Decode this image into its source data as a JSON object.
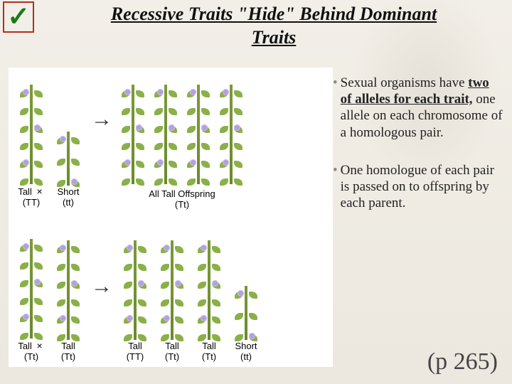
{
  "header": {
    "checkmark": "✓",
    "title_line1": "Recessive Traits \"Hide\" Behind Dominant",
    "title_line2": "Traits"
  },
  "bullets": {
    "b1_pre": "Sexual organisms have ",
    "b1_bold": "two of alleles for each trait,",
    "b1_post": " one allele on each chromosome of a homologous pair.",
    "b2": "One homologue of each pair is passed on to offspring by each parent."
  },
  "page_ref": "(p 265)",
  "diagram": {
    "row1": {
      "parent1": {
        "label_top": "Tall",
        "label_bot": "(TT)"
      },
      "cross": "×",
      "parent2": {
        "label_top": "Short",
        "label_bot": "(tt)"
      },
      "offspring_label_top": "All Tall Offspring",
      "offspring_label_bot": "(Tt)"
    },
    "row2": {
      "parent1": {
        "label_top": "Tall",
        "label_bot": "(Tt)"
      },
      "cross": "×",
      "parent2": {
        "label_top": "Tall",
        "label_bot": "(Tt)"
      },
      "off1": {
        "top": "Tall",
        "bot": "(TT)"
      },
      "off2": {
        "top": "Tall",
        "bot": "(Tt)"
      },
      "off3": {
        "top": "Tall",
        "bot": "(Tt)"
      },
      "off4": {
        "top": "Short",
        "bot": "(tt)"
      }
    },
    "colors": {
      "stem": "#6a8a2a",
      "leaf": "#8ab048",
      "flower": "#b4a0e0",
      "box_border": "#b03020",
      "checkmark": "#1a7a1a",
      "background": "#f0ede5",
      "diagram_bg": "#ffffff"
    }
  }
}
